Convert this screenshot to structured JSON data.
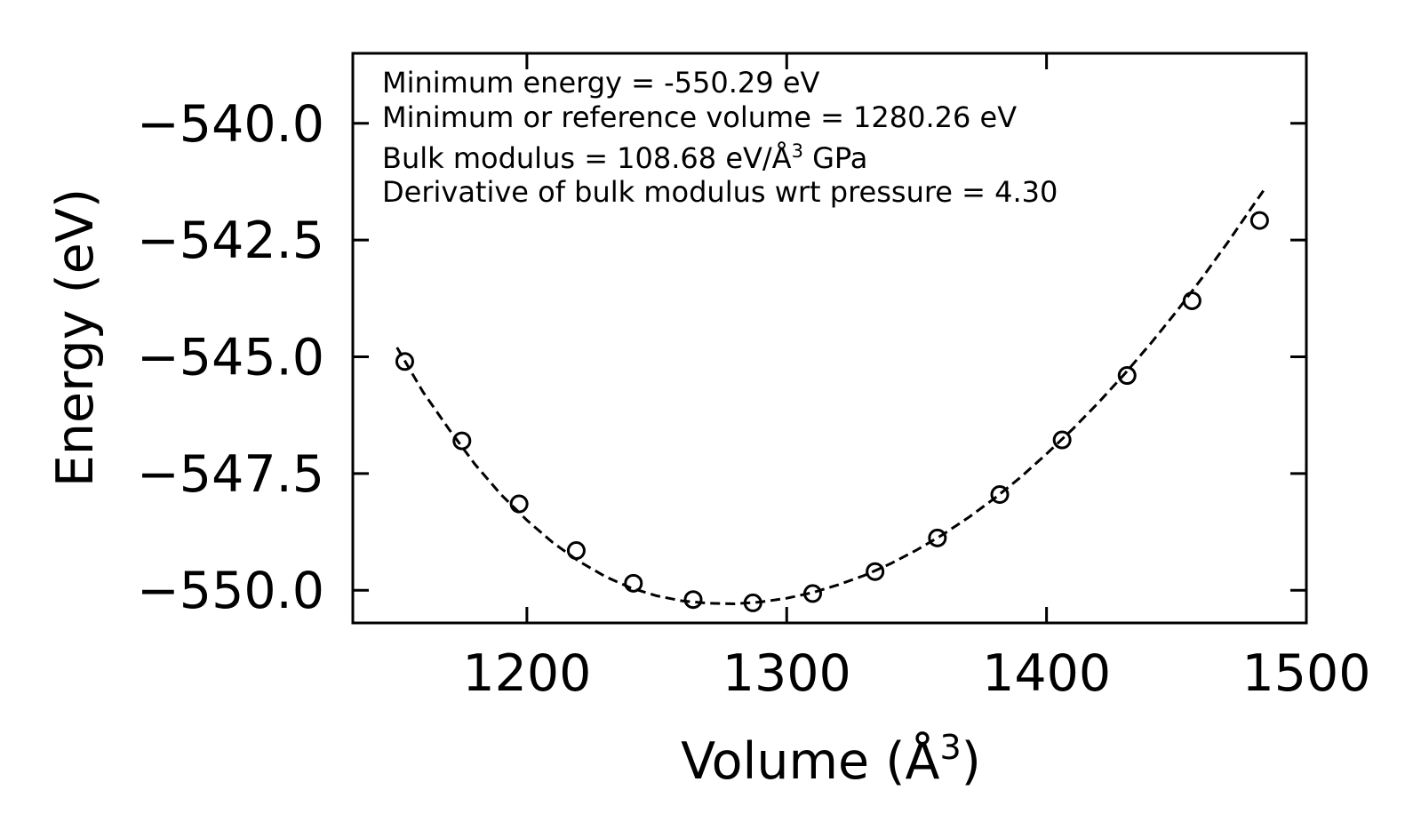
{
  "chart_data": {
    "type": "scatter",
    "title": "",
    "xlabel": "Volume (Å",
    "xlabel_sup": "3",
    "xlabel_close": ")",
    "ylabel": "Energy (eV)",
    "xlim": [
      1133,
      1500
    ],
    "ylim": [
      -550.7,
      -538.5
    ],
    "xticks": [
      1200,
      1300,
      1400,
      1500
    ],
    "xtick_labels": [
      "1200",
      "1300",
      "1400",
      "1500"
    ],
    "yticks": [
      -540.0,
      -542.5,
      -545.0,
      -547.5,
      -550.0
    ],
    "ytick_labels": [
      "−540.0",
      "−542.5",
      "−545.0",
      "−547.5",
      "−550.0"
    ],
    "grid": false,
    "series": [
      {
        "name": "data",
        "style": "open-circle",
        "x": [
          1153,
          1175,
          1197,
          1219,
          1241,
          1264,
          1287,
          1310,
          1334,
          1358,
          1382,
          1406,
          1431,
          1456,
          1482
        ],
        "y": [
          -545.1,
          -546.8,
          -548.15,
          -549.15,
          -549.85,
          -550.2,
          -550.27,
          -550.07,
          -549.6,
          -548.88,
          -547.95,
          -546.78,
          -545.4,
          -543.8,
          -542.08
        ]
      },
      {
        "name": "fit",
        "style": "dashed-line",
        "x": [
          1150,
          1160,
          1170,
          1180,
          1190,
          1200,
          1210,
          1220,
          1230,
          1240,
          1250,
          1260,
          1270,
          1280,
          1290,
          1300,
          1310,
          1320,
          1330,
          1340,
          1350,
          1360,
          1370,
          1380,
          1390,
          1400,
          1410,
          1420,
          1430,
          1440,
          1450,
          1460,
          1470,
          1480,
          1484
        ],
        "y": [
          -544.8,
          -545.75,
          -546.55,
          -547.3,
          -547.95,
          -548.5,
          -548.98,
          -549.38,
          -549.7,
          -549.95,
          -550.12,
          -550.23,
          -550.28,
          -550.29,
          -550.25,
          -550.17,
          -550.05,
          -549.88,
          -549.68,
          -549.43,
          -549.14,
          -548.81,
          -548.44,
          -548.03,
          -547.58,
          -547.08,
          -546.55,
          -545.98,
          -545.37,
          -544.72,
          -544.03,
          -543.3,
          -542.53,
          -541.72,
          -541.4
        ]
      }
    ],
    "annotations": [
      "Minimum energy = -550.29 eV",
      "Minimum or reference volume = 1280.26 eV",
      "Bulk modulus = 108.68 eV/Å",
      "Derivative of bulk modulus wrt pressure = 4.30"
    ],
    "annotation_bulk_sup": "3",
    "annotation_bulk_unit": " GPa",
    "colors": {
      "line": "#000000",
      "marker_edge": "#000000",
      "background": "#ffffff"
    }
  }
}
